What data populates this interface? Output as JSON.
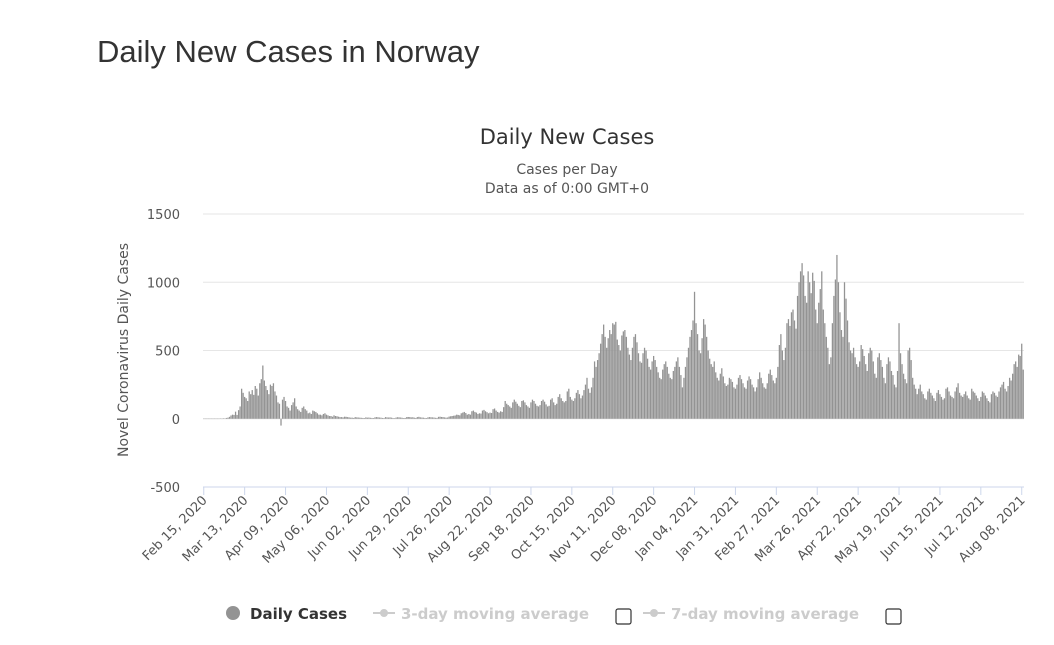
{
  "header": {
    "title": "Daily New Cases in Norway"
  },
  "chart_data": {
    "type": "bar",
    "title": "Daily New Cases",
    "subtitle": [
      "Cases per Day",
      "Data as of 0:00 GMT+0"
    ],
    "ylabel": "Novel Coronavirus Daily Cases",
    "ylim": [
      -500,
      1500
    ],
    "yticks": [
      -500,
      0,
      500,
      1000,
      1500
    ],
    "grid": true,
    "categories": [
      "Feb 15, 2020",
      null,
      null,
      null,
      null,
      null,
      null,
      null,
      null,
      null,
      null,
      null,
      null,
      null,
      null,
      null,
      null,
      null,
      null,
      null,
      null,
      null,
      null,
      null,
      null,
      null,
      null,
      "Mar 13, 2020",
      null,
      null,
      null,
      null,
      null,
      null,
      null,
      null,
      null,
      null,
      null,
      null,
      null,
      null,
      null,
      null,
      null,
      null,
      null,
      null,
      null,
      null,
      null,
      null,
      null,
      null,
      "Apr 09, 2020",
      null,
      null,
      null,
      null,
      null,
      null,
      null,
      null,
      null,
      null,
      null,
      null,
      null,
      null,
      null,
      null,
      null,
      null,
      null,
      null,
      null,
      null,
      null,
      null,
      null,
      null,
      "May 06, 2020",
      null,
      null,
      null,
      null,
      null,
      null,
      null,
      null,
      null,
      null,
      null,
      null,
      null,
      null,
      null,
      null,
      null,
      null,
      null,
      null,
      null,
      null,
      null,
      null,
      null,
      null,
      "Jun 02, 2020",
      null,
      null,
      null,
      null,
      null,
      null,
      null,
      null,
      null,
      null,
      null,
      null,
      null,
      null,
      null,
      null,
      null,
      null,
      null,
      null,
      null,
      null,
      null,
      null,
      null,
      null,
      "Jun 29, 2020",
      null,
      null,
      null,
      null,
      null,
      null,
      null,
      null,
      null,
      null,
      null,
      null,
      null,
      null,
      null,
      null,
      null,
      null,
      null,
      null,
      null,
      null,
      null,
      null,
      null,
      null,
      "Jul 26, 2020",
      null,
      null,
      null,
      null,
      null,
      null,
      null,
      null,
      null,
      null,
      null,
      null,
      null,
      null,
      null,
      null,
      null,
      null,
      null,
      null,
      null,
      null,
      null,
      null,
      null,
      null,
      "Aug 22, 2020",
      null,
      null,
      null,
      null,
      null,
      null,
      null,
      null,
      null,
      null,
      null,
      null,
      null,
      null,
      null,
      null,
      null,
      null,
      null,
      null,
      null,
      null,
      null,
      null,
      null,
      null,
      "Sep 18, 2020",
      null,
      null,
      null,
      null,
      null,
      null,
      null,
      null,
      null,
      null,
      null,
      null,
      null,
      null,
      null,
      null,
      null,
      null,
      null,
      null,
      null,
      null,
      null,
      null,
      null,
      null,
      "Oct 15, 2020",
      null,
      null,
      null,
      null,
      null,
      null,
      null,
      null,
      null,
      null,
      null,
      null,
      null,
      null,
      null,
      null,
      null,
      null,
      null,
      null,
      null,
      null,
      null,
      null,
      null,
      null,
      "Nov 11, 2020",
      null,
      null,
      null,
      null,
      null,
      null,
      null,
      null,
      null,
      null,
      null,
      null,
      null,
      null,
      null,
      null,
      null,
      null,
      null,
      null,
      null,
      null,
      null,
      null,
      null,
      null,
      "Dec 08, 2020",
      null,
      null,
      null,
      null,
      null,
      null,
      null,
      null,
      null,
      null,
      null,
      null,
      null,
      null,
      null,
      null,
      null,
      null,
      null,
      null,
      null,
      null,
      null,
      null,
      null,
      null,
      "Jan 04, 2021",
      null,
      null,
      null,
      null,
      null,
      null,
      null,
      null,
      null,
      null,
      null,
      null,
      null,
      null,
      null,
      null,
      null,
      null,
      null,
      null,
      null,
      null,
      null,
      null,
      null,
      null,
      "Jan 31, 2021",
      null,
      null,
      null,
      null,
      null,
      null,
      null,
      null,
      null,
      null,
      null,
      null,
      null,
      null,
      null,
      null,
      null,
      null,
      null,
      null,
      null,
      null,
      null,
      null,
      null,
      null,
      "Feb 27, 2021",
      null,
      null,
      null,
      null,
      null,
      null,
      null,
      null,
      null,
      null,
      null,
      null,
      null,
      null,
      null,
      null,
      null,
      null,
      null,
      null,
      null,
      null,
      null,
      null,
      null,
      null,
      "Mar 26, 2021",
      null,
      null,
      null,
      null,
      null,
      null,
      null,
      null,
      null,
      null,
      null,
      null,
      null,
      null,
      null,
      null,
      null,
      null,
      null,
      null,
      null,
      null,
      null,
      null,
      null,
      null,
      "Apr 22, 2021",
      null,
      null,
      null,
      null,
      null,
      null,
      null,
      null,
      null,
      null,
      null,
      null,
      null,
      null,
      null,
      null,
      null,
      null,
      null,
      null,
      null,
      null,
      null,
      null,
      null,
      null,
      "May 19, 2021",
      null,
      null,
      null,
      null,
      null,
      null,
      null,
      null,
      null,
      null,
      null,
      null,
      null,
      null,
      null,
      null,
      null,
      null,
      null,
      null,
      null,
      null,
      null,
      null,
      null,
      null,
      "Jun 15, 2021",
      null,
      null,
      null,
      null,
      null,
      null,
      null,
      null,
      null,
      null,
      null,
      null,
      null,
      null,
      null,
      null,
      null,
      null,
      null,
      null,
      null,
      null,
      null,
      null,
      null,
      null,
      "Jul 12, 2021",
      null,
      null,
      null,
      null,
      null,
      null,
      null,
      null,
      null,
      null,
      null,
      null,
      null,
      null,
      null,
      null,
      null,
      null,
      null,
      null,
      null,
      null,
      null,
      null,
      null,
      null,
      "Aug 08, 2021",
      null
    ],
    "series": [
      {
        "name": "Daily Cases",
        "color": "#939393",
        "values": [
          0,
          0,
          0,
          0,
          0,
          0,
          0,
          0,
          0,
          0,
          0,
          1,
          0,
          3,
          2,
          6,
          8,
          14,
          24,
          30,
          28,
          52,
          28,
          63,
          90,
          220,
          190,
          160,
          150,
          130,
          200,
          180,
          210,
          175,
          240,
          220,
          170,
          260,
          290,
          390,
          280,
          240,
          210,
          180,
          250,
          240,
          260,
          200,
          170,
          120,
          110,
          -50,
          140,
          160,
          130,
          90,
          80,
          60,
          100,
          120,
          150,
          90,
          70,
          60,
          50,
          80,
          90,
          70,
          60,
          40,
          45,
          35,
          60,
          55,
          50,
          40,
          30,
          30,
          25,
          35,
          40,
          30,
          25,
          20,
          20,
          15,
          25,
          20,
          18,
          15,
          12,
          12,
          10,
          15,
          14,
          12,
          10,
          8,
          8,
          6,
          12,
          10,
          9,
          8,
          7,
          6,
          5,
          10,
          8,
          9,
          7,
          6,
          5,
          10,
          12,
          11,
          9,
          8,
          6,
          5,
          12,
          10,
          9,
          10,
          8,
          5,
          4,
          9,
          11,
          10,
          9,
          7,
          5,
          6,
          12,
          13,
          12,
          10,
          11,
          8,
          6,
          12,
          14,
          10,
          9,
          8,
          6,
          5,
          10,
          12,
          11,
          10,
          9,
          7,
          6,
          14,
          15,
          13,
          12,
          10,
          8,
          9,
          16,
          18,
          20,
          22,
          24,
          30,
          28,
          25,
          40,
          45,
          50,
          42,
          30,
          35,
          30,
          55,
          60,
          50,
          45,
          35,
          40,
          38,
          60,
          65,
          55,
          48,
          40,
          45,
          42,
          70,
          75,
          60,
          50,
          45,
          55,
          50,
          85,
          130,
          110,
          100,
          90,
          80,
          120,
          140,
          125,
          110,
          95,
          85,
          130,
          135,
          120,
          100,
          90,
          80,
          120,
          140,
          130,
          110,
          95,
          90,
          100,
          130,
          140,
          125,
          105,
          90,
          95,
          140,
          150,
          120,
          100,
          110,
          160,
          180,
          150,
          130,
          120,
          130,
          200,
          220,
          160,
          140,
          130,
          150,
          190,
          210,
          180,
          150,
          170,
          210,
          250,
          300,
          220,
          190,
          230,
          300,
          420,
          380,
          430,
          480,
          550,
          620,
          690,
          600,
          520,
          590,
          650,
          620,
          700,
          690,
          710,
          580,
          540,
          500,
          610,
          640,
          650,
          600,
          520,
          470,
          430,
          520,
          600,
          620,
          560,
          480,
          420,
          410,
          480,
          520,
          500,
          440,
          380,
          360,
          420,
          460,
          430,
          380,
          340,
          300,
          290,
          360,
          400,
          420,
          380,
          330,
          300,
          290,
          350,
          380,
          420,
          450,
          380,
          320,
          230,
          300,
          380,
          450,
          520,
          600,
          650,
          720,
          930,
          700,
          620,
          500,
          480,
          590,
          730,
          690,
          600,
          500,
          440,
          400,
          380,
          420,
          340,
          300,
          280,
          330,
          370,
          310,
          260,
          240,
          250,
          300,
          290,
          270,
          230,
          220,
          250,
          300,
          320,
          290,
          260,
          230,
          220,
          280,
          310,
          290,
          250,
          230,
          200,
          230,
          290,
          340,
          300,
          260,
          230,
          220,
          260,
          330,
          360,
          320,
          280,
          260,
          300,
          380,
          540,
          620,
          500,
          430,
          520,
          700,
          730,
          680,
          780,
          800,
          720,
          660,
          900,
          1000,
          1080,
          1140,
          1050,
          900,
          850,
          1080,
          1000,
          920,
          1070,
          1010,
          800,
          700,
          850,
          950,
          1080,
          800,
          700,
          600,
          520,
          400,
          450,
          700,
          900,
          1020,
          1200,
          1000,
          780,
          650,
          600,
          1000,
          880,
          720,
          560,
          500,
          480,
          520,
          450,
          400,
          380,
          420,
          540,
          510,
          460,
          400,
          350,
          480,
          520,
          500,
          420,
          330,
          300,
          450,
          480,
          430,
          380,
          300,
          260,
          400,
          450,
          420,
          350,
          320,
          250,
          230,
          350,
          700,
          480,
          400,
          330,
          290,
          260,
          500,
          520,
          430,
          300,
          250,
          220,
          180,
          220,
          250,
          200,
          180,
          150,
          140,
          200,
          220,
          190,
          170,
          150,
          130,
          190,
          210,
          180,
          160,
          140,
          150,
          220,
          230,
          200,
          170,
          160,
          150,
          200,
          230,
          260,
          190,
          170,
          160,
          180,
          200,
          170,
          150,
          140,
          220,
          200,
          190,
          170,
          150,
          130,
          160,
          200,
          190,
          170,
          150,
          130,
          120,
          180,
          200,
          190,
          170,
          160,
          200,
          230,
          250,
          270,
          220,
          200,
          240,
          300,
          280,
          330,
          400,
          420,
          380,
          470,
          460,
          550,
          360
        ]
      }
    ],
    "inactive_legend": [
      "3-day moving average",
      "7-day moving average"
    ]
  }
}
